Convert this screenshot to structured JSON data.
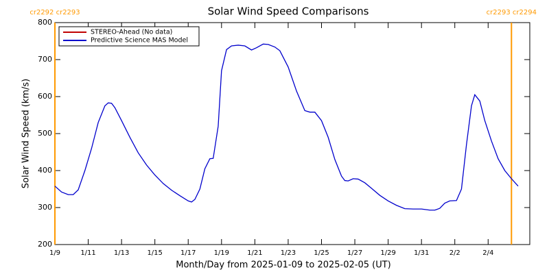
{
  "chart_data": {
    "type": "line",
    "title": "Solar Wind Speed Comparisons",
    "x_label": "Month/Day from 2025-01-09 to 2025-02-05 (UT)",
    "y_label": "Solar Wind Speed (km/s)",
    "xlim": [
      0,
      28.5
    ],
    "ylim": [
      200,
      800
    ],
    "xticks": [
      {
        "value": 0,
        "label": "1/9"
      },
      {
        "value": 2,
        "label": "1/11"
      },
      {
        "value": 4,
        "label": "1/13"
      },
      {
        "value": 6,
        "label": "1/15"
      },
      {
        "value": 8,
        "label": "1/17"
      },
      {
        "value": 10,
        "label": "1/19"
      },
      {
        "value": 12,
        "label": "1/21"
      },
      {
        "value": 14,
        "label": "1/23"
      },
      {
        "value": 16,
        "label": "1/25"
      },
      {
        "value": 18,
        "label": "1/27"
      },
      {
        "value": 20,
        "label": "1/29"
      },
      {
        "value": 22,
        "label": "1/31"
      },
      {
        "value": 24,
        "label": "2/2"
      },
      {
        "value": 26,
        "label": "2/4"
      }
    ],
    "yticks": [
      200,
      300,
      400,
      500,
      600,
      700,
      800
    ],
    "legend": "upper left",
    "x": [
      0,
      0.4,
      0.8,
      1.1,
      1.4,
      1.8,
      2.2,
      2.6,
      3.0,
      3.2,
      3.4,
      3.6,
      4.0,
      4.5,
      5.0,
      5.5,
      6.0,
      6.5,
      7.0,
      7.5,
      8.0,
      8.2,
      8.4,
      8.7,
      9.0,
      9.3,
      9.5,
      9.8,
      10.0,
      10.3,
      10.6,
      11.0,
      11.4,
      11.8,
      12.1,
      12.5,
      12.8,
      13.2,
      13.5,
      14.0,
      14.5,
      15.0,
      15.3,
      15.6,
      16.0,
      16.4,
      16.8,
      17.2,
      17.4,
      17.6,
      17.9,
      18.2,
      18.6,
      19.0,
      19.5,
      20.0,
      20.5,
      21.0,
      21.5,
      22.0,
      22.5,
      22.8,
      23.1,
      23.4,
      23.7,
      24.1,
      24.4,
      24.7,
      25.0,
      25.2,
      25.5,
      25.8,
      26.2,
      26.6,
      27.0,
      27.4,
      27.8
    ],
    "series": [
      {
        "name": "STEREO-Ahead (No data)",
        "color": "#c00000",
        "values": [
          null,
          null,
          null,
          null,
          null,
          null,
          null,
          null,
          null,
          null,
          null,
          null,
          null,
          null,
          null,
          null,
          null,
          null,
          null,
          null,
          null,
          null,
          null,
          null,
          null,
          null,
          null,
          null,
          null,
          null,
          null,
          null,
          null,
          null,
          null,
          null,
          null,
          null,
          null,
          null,
          null,
          null,
          null,
          null,
          null,
          null,
          null,
          null,
          null,
          null,
          null,
          null,
          null,
          null,
          null,
          null,
          null,
          null,
          null,
          null,
          null,
          null,
          null,
          null,
          null,
          null,
          null,
          null,
          null,
          null,
          null,
          null,
          null,
          null,
          null,
          null,
          null
        ]
      },
      {
        "name": "Predictive Science MAS Model",
        "color": "#0000cc",
        "values": [
          358,
          342,
          335,
          335,
          348,
          400,
          460,
          530,
          575,
          583,
          582,
          570,
          535,
          490,
          448,
          415,
          388,
          365,
          347,
          332,
          318,
          315,
          322,
          350,
          405,
          432,
          433,
          520,
          670,
          727,
          737,
          739,
          737,
          726,
          732,
          742,
          741,
          734,
          724,
          680,
          615,
          562,
          558,
          558,
          535,
          490,
          430,
          385,
          373,
          372,
          378,
          377,
          367,
          352,
          333,
          318,
          306,
          297,
          296,
          296,
          293,
          293,
          298,
          312,
          318,
          319,
          350,
          470,
          575,
          605,
          588,
          535,
          480,
          432,
          400,
          378,
          358
        ]
      }
    ],
    "markers": {
      "color": "#ff9900",
      "items": [
        {
          "x": 0,
          "label": "cr2292 cr2293"
        },
        {
          "x": 27.4,
          "label": "cr2293 cr2294"
        }
      ]
    }
  }
}
